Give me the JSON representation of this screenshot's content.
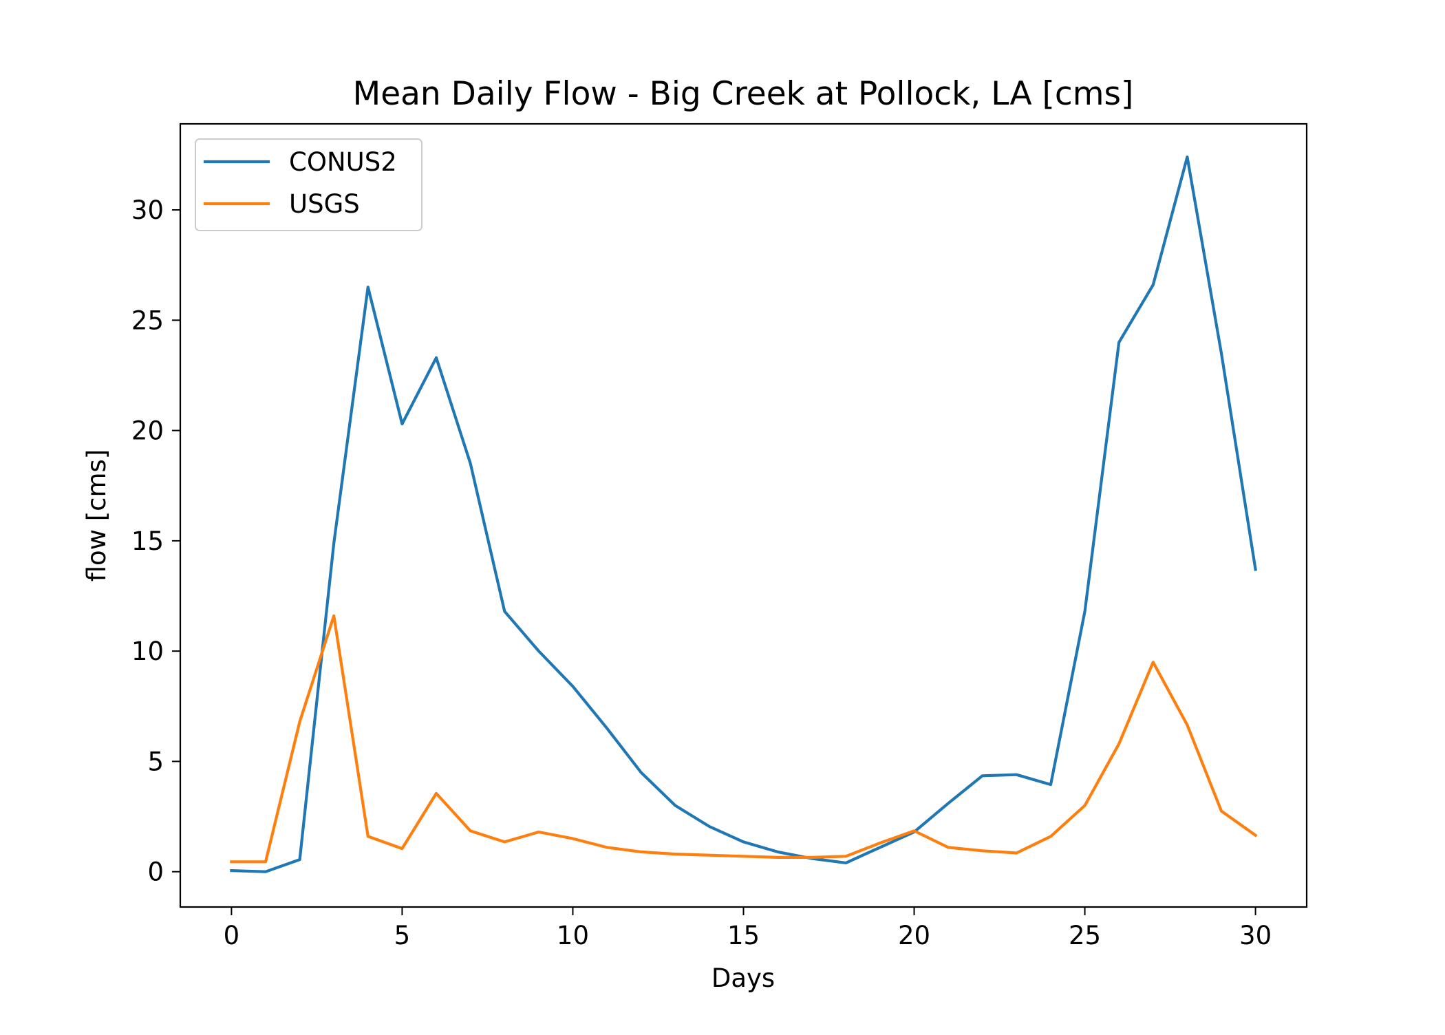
{
  "chart_data": {
    "type": "line",
    "title": "Mean Daily Flow - Big Creek at Pollock, LA [cms]",
    "xlabel": "Days",
    "ylabel": "flow [cms]",
    "xlim": [
      -1.5,
      31.5
    ],
    "ylim": [
      -1.6,
      33.9
    ],
    "xticks": [
      0,
      5,
      10,
      15,
      20,
      25,
      30
    ],
    "yticks": [
      0,
      5,
      10,
      15,
      20,
      25,
      30
    ],
    "grid": false,
    "legend_position": "upper-left",
    "x": [
      0,
      1,
      2,
      3,
      4,
      5,
      6,
      7,
      8,
      9,
      10,
      11,
      12,
      13,
      14,
      15,
      16,
      17,
      18,
      19,
      20,
      21,
      22,
      23,
      24,
      25,
      26,
      27,
      28,
      29,
      30
    ],
    "series": [
      {
        "name": "CONUS2",
        "color": "#1f77b4",
        "values": [
          0.05,
          0.0,
          0.55,
          14.9,
          26.5,
          20.3,
          23.3,
          18.5,
          11.8,
          10.0,
          8.4,
          6.5,
          4.5,
          3.0,
          2.05,
          1.35,
          0.9,
          0.6,
          0.4,
          1.1,
          1.8,
          3.1,
          4.35,
          4.4,
          3.95,
          11.8,
          24.0,
          26.6,
          32.4,
          23.5,
          13.7
        ]
      },
      {
        "name": "USGS",
        "color": "#ff7f0e",
        "values": [
          0.45,
          0.45,
          6.8,
          11.6,
          1.6,
          1.05,
          3.55,
          1.85,
          1.35,
          1.8,
          1.5,
          1.1,
          0.9,
          0.8,
          0.75,
          0.7,
          0.65,
          0.65,
          0.7,
          1.3,
          1.85,
          1.1,
          0.95,
          0.85,
          1.6,
          3.0,
          5.8,
          9.5,
          6.65,
          2.75,
          1.65
        ]
      }
    ]
  }
}
